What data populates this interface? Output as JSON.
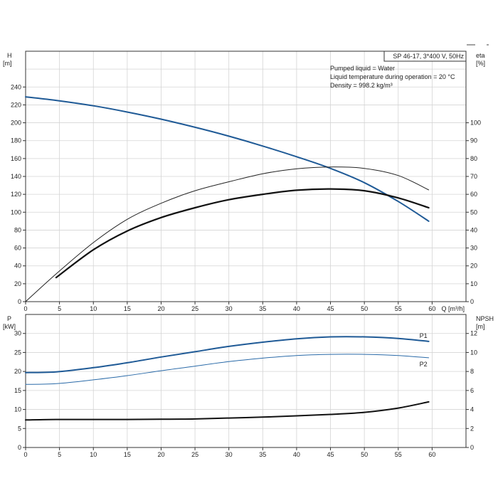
{
  "chart_data": [
    {
      "type": "line",
      "panel": "head-efficiency",
      "title": "SP 46-17, 3*400 V, 50Hz",
      "notes": [
        "Pumped liquid = Water",
        "Liquid temperature during operation = 20 °C",
        "Density = 998.2 kg/m³"
      ],
      "xlabel": "Q [m³/h]",
      "xlim": [
        0,
        65
      ],
      "xticks": [
        0,
        5,
        10,
        15,
        20,
        25,
        30,
        35,
        40,
        45,
        50,
        55,
        60
      ],
      "left_axis": {
        "label": "H",
        "unit": "[m]",
        "ylim": [
          0,
          280
        ],
        "ticks": [
          0,
          20,
          40,
          60,
          80,
          100,
          120,
          140,
          160,
          180,
          200,
          220,
          240
        ]
      },
      "right_axis": {
        "label": "eta",
        "unit": "[%]",
        "ylim": [
          0,
          140
        ],
        "ticks": [
          0,
          10,
          20,
          30,
          40,
          50,
          60,
          70,
          80,
          90,
          100
        ]
      },
      "grid": true,
      "series": [
        {
          "id": "H",
          "axis": "left",
          "color": "#1f5a96",
          "width": 2,
          "x": [
            0,
            4.5,
            10,
            15,
            20,
            25,
            30,
            35,
            40,
            45,
            50,
            55,
            59.5
          ],
          "y": [
            229,
            225,
            219,
            212,
            204,
            195,
            185,
            174,
            162,
            149,
            133,
            112,
            90
          ]
        },
        {
          "id": "eta-thin",
          "axis": "right",
          "color": "#222222",
          "width": 1,
          "x": [
            0,
            4.5,
            10,
            15,
            20,
            25,
            30,
            35,
            40,
            45,
            50,
            55,
            59.5
          ],
          "y": [
            0,
            15.5,
            33,
            46,
            55,
            62,
            67,
            71.5,
            74.3,
            75.3,
            74.5,
            70.5,
            62.5
          ]
        },
        {
          "id": "eta-thick",
          "axis": "right",
          "color": "#111111",
          "width": 2.2,
          "x": [
            4.5,
            10,
            15,
            20,
            25,
            30,
            35,
            40,
            45,
            50,
            55,
            59.5
          ],
          "y": [
            13.5,
            29,
            39.5,
            47,
            52.5,
            57,
            60,
            62.3,
            63,
            62,
            58,
            52.5
          ]
        }
      ]
    },
    {
      "type": "line",
      "panel": "power-npsh",
      "xlim": [
        0,
        65
      ],
      "xticks": [
        0,
        5,
        10,
        15,
        20,
        25,
        30,
        35,
        40,
        45,
        50,
        55,
        60
      ],
      "left_axis": {
        "label": "P",
        "unit": "[kW]",
        "ylim": [
          0,
          35
        ],
        "ticks": [
          0,
          5,
          10,
          15,
          20,
          25,
          30
        ]
      },
      "right_axis": {
        "label": "NPSH",
        "unit": "[m]",
        "ylim": [
          0,
          14
        ],
        "ticks": [
          0,
          2,
          4,
          6,
          8,
          10,
          12
        ]
      },
      "grid": true,
      "series": [
        {
          "name": "P1",
          "axis": "left",
          "color": "#1f5a96",
          "width": 2,
          "x": [
            0,
            4.5,
            10,
            15,
            20,
            25,
            30,
            35,
            40,
            45,
            50,
            55,
            59.5
          ],
          "y": [
            19.7,
            19.9,
            21,
            22.3,
            23.8,
            25.2,
            26.6,
            27.7,
            28.6,
            29.1,
            29.1,
            28.7,
            27.9
          ]
        },
        {
          "name": "P2",
          "axis": "left",
          "color": "#2a6aa8",
          "width": 1,
          "x": [
            0,
            4.5,
            10,
            15,
            20,
            25,
            30,
            35,
            40,
            45,
            50,
            55,
            59.5
          ],
          "y": [
            16.6,
            16.8,
            17.8,
            18.9,
            20.2,
            21.4,
            22.6,
            23.5,
            24.2,
            24.5,
            24.5,
            24.2,
            23.6
          ]
        },
        {
          "id": "NPSH",
          "axis": "right",
          "color": "#111111",
          "width": 2,
          "x": [
            0,
            4.5,
            10,
            15,
            20,
            25,
            30,
            35,
            40,
            45,
            50,
            55,
            59.5
          ],
          "y": [
            2.9,
            2.95,
            2.95,
            2.95,
            2.97,
            3.0,
            3.1,
            3.2,
            3.33,
            3.48,
            3.7,
            4.15,
            4.8
          ]
        }
      ]
    }
  ]
}
